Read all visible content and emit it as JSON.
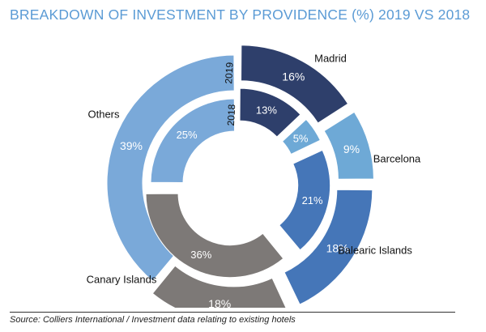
{
  "chart_data": {
    "type": "pie",
    "subtype": "double-doughnut",
    "title": "BREAKDOWN OF INVESTMENT BY PROVIDENCE (%) 2019 VS 2018",
    "categories": [
      "Madrid",
      "Barcelona",
      "Balearic Islands",
      "Canary Islands",
      "Others"
    ],
    "series": [
      {
        "name": "2019",
        "ring": "outer",
        "values": [
          16,
          9,
          18,
          18,
          39
        ],
        "labels": [
          "16%",
          "9%",
          "18%",
          "18%",
          "39%"
        ]
      },
      {
        "name": "2018",
        "ring": "inner",
        "values": [
          13,
          5,
          21,
          36,
          25
        ],
        "labels": [
          "13%",
          "5%",
          "21%",
          "36%",
          "25%"
        ]
      }
    ],
    "colors": {
      "Madrid": "#2e3f6b",
      "Barcelona": "#6ea9d6",
      "Balearic Islands": "#4576b8",
      "Canary Islands": "#7d7977",
      "Others": "#7aa9d9"
    },
    "exploded": [
      "Madrid",
      "Barcelona",
      "Balearic Islands",
      "Canary Islands"
    ],
    "legend": "none"
  },
  "source": "Source: Colliers International / Investment data relating to existing hotels"
}
